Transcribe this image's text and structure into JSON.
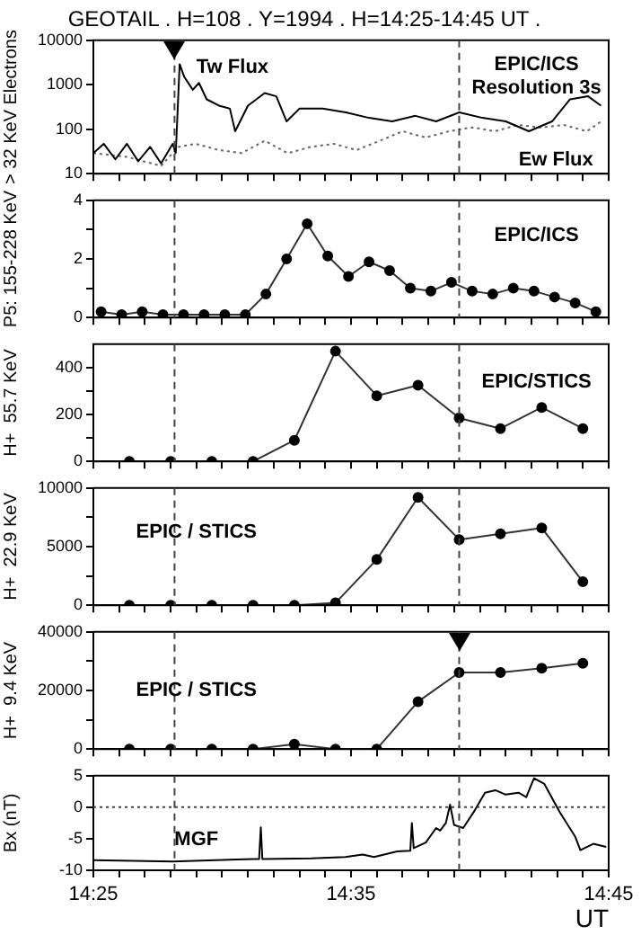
{
  "chart_data": [
    {
      "type": "line",
      "title": "GEOTAIL . H=108 . Y=1994 . H=14:25-14:45 UT .",
      "ylabel": "> 32 KeV Electrons",
      "log": "y",
      "marker": "none",
      "tick_labels": "y",
      "xlim": [
        14.4167,
        14.75
      ],
      "xticks": [
        {
          "value": 14.4167,
          "label": null
        },
        {
          "value": 14.4333,
          "label": null
        },
        {
          "value": 14.45,
          "label": null
        },
        {
          "value": 14.4667,
          "label": null
        },
        {
          "value": 14.4833,
          "label": null
        },
        {
          "value": 14.5,
          "label": null
        },
        {
          "value": 14.5167,
          "label": null
        },
        {
          "value": 14.5333,
          "label": null
        },
        {
          "value": 14.55,
          "label": null
        },
        {
          "value": 14.5667,
          "label": null
        },
        {
          "value": 14.5833,
          "label": null
        },
        {
          "value": 14.6,
          "label": null
        },
        {
          "value": 14.6167,
          "label": null
        },
        {
          "value": 14.6333,
          "label": null
        },
        {
          "value": 14.65,
          "label": null
        },
        {
          "value": 14.6667,
          "label": null
        },
        {
          "value": 14.6833,
          "label": null
        },
        {
          "value": 14.7,
          "label": null
        },
        {
          "value": 14.7167,
          "label": null
        },
        {
          "value": 14.7333,
          "label": null
        },
        {
          "value": 14.75,
          "label": null
        }
      ],
      "ylim": [
        10,
        10000
      ],
      "yticks": [
        10,
        100,
        1000,
        10000
      ],
      "series": [
        {
          "name": "Tw Flux",
          "color": "#000000",
          "line_style": "solid",
          "x": [
            14.4167,
            14.4234,
            14.4309,
            14.4384,
            14.4457,
            14.4534,
            14.4605,
            14.468,
            14.47,
            14.4725,
            14.4755,
            14.481,
            14.485,
            14.49,
            14.4979,
            14.505,
            14.5084,
            14.5167,
            14.5275,
            14.535,
            14.5417,
            14.55,
            14.565,
            14.58,
            14.595,
            14.61,
            14.625,
            14.6384,
            14.6534,
            14.6684,
            14.6834,
            14.6984,
            14.7134,
            14.725,
            14.7367,
            14.745
          ],
          "values": [
            29,
            47,
            21,
            47,
            19,
            40,
            17,
            47,
            29,
            2900,
            1500,
            770,
            1100,
            470,
            340,
            290,
            90,
            340,
            650,
            550,
            150,
            290,
            290,
            240,
            180,
            150,
            200,
            150,
            240,
            180,
            150,
            90,
            150,
            470,
            550,
            340
          ]
        },
        {
          "name": "Ew Flux",
          "color": "#666666",
          "line_style": "dotted",
          "x": [
            14.4167,
            14.4382,
            14.4605,
            14.4717,
            14.4829,
            14.4979,
            14.5127,
            14.5275,
            14.5424,
            14.5574,
            14.5722,
            14.587,
            14.602,
            14.6167,
            14.6317,
            14.6467,
            14.6617,
            14.6764,
            14.6912,
            14.7062,
            14.721,
            14.7359,
            14.7452
          ],
          "values": [
            29,
            24,
            15,
            40,
            47,
            34,
            29,
            55,
            29,
            40,
            47,
            34,
            55,
            90,
            65,
            90,
            110,
            90,
            125,
            110,
            125,
            90,
            150
          ]
        }
      ],
      "ref_lines": [
        {
          "axis": "x",
          "value": 14.4692,
          "line_style": "dashed"
        },
        {
          "axis": "x",
          "value": 14.6533,
          "line_style": "dashed"
        }
      ],
      "annotations": [
        "EPIC/ICS",
        "Resolution 3s"
      ]
    },
    {
      "type": "line",
      "ylabel": "P5: 155-228 KeV",
      "marker": "circle",
      "line_style": "solid",
      "color": "#333333",
      "tick_labels": "y",
      "xlim": [
        14.4167,
        14.75
      ],
      "xticks": [
        {
          "value": 14.4167,
          "label": null
        },
        {
          "value": 14.4333,
          "label": null
        },
        {
          "value": 14.45,
          "label": null
        },
        {
          "value": 14.4667,
          "label": null
        },
        {
          "value": 14.4833,
          "label": null
        },
        {
          "value": 14.5,
          "label": null
        },
        {
          "value": 14.5167,
          "label": null
        },
        {
          "value": 14.5333,
          "label": null
        },
        {
          "value": 14.55,
          "label": null
        },
        {
          "value": 14.5667,
          "label": null
        },
        {
          "value": 14.5833,
          "label": null
        },
        {
          "value": 14.6,
          "label": null
        },
        {
          "value": 14.6167,
          "label": null
        },
        {
          "value": 14.6333,
          "label": null
        },
        {
          "value": 14.65,
          "label": null
        },
        {
          "value": 14.6667,
          "label": null
        },
        {
          "value": 14.6833,
          "label": null
        },
        {
          "value": 14.7,
          "label": null
        },
        {
          "value": 14.7167,
          "label": null
        },
        {
          "value": 14.7333,
          "label": null
        },
        {
          "value": 14.75,
          "label": null
        }
      ],
      "ylim": [
        0,
        4
      ],
      "yticks": [
        0,
        {
          "value": 1,
          "label": null
        },
        2,
        {
          "value": 3,
          "label": null
        },
        4
      ],
      "x": [
        14.4217,
        14.435,
        14.4483,
        14.4617,
        14.475,
        14.4883,
        14.5017,
        14.515,
        14.5283,
        14.5417,
        14.555,
        14.5683,
        14.5817,
        14.595,
        14.6083,
        14.6217,
        14.635,
        14.6483,
        14.6617,
        14.675,
        14.6883,
        14.7017,
        14.715,
        14.7283,
        14.7417
      ],
      "values": [
        0.2,
        0.1,
        0.2,
        0.1,
        0.1,
        0.1,
        0.1,
        0.1,
        0.8,
        2.0,
        3.2,
        2.1,
        1.4,
        1.9,
        1.6,
        1.0,
        0.9,
        1.2,
        0.9,
        0.8,
        1.0,
        0.9,
        0.7,
        0.5,
        0.2
      ],
      "ref_lines": [
        {
          "axis": "x",
          "value": 14.4692,
          "line_style": "dashed"
        },
        {
          "axis": "x",
          "value": 14.6533,
          "line_style": "dashed"
        }
      ],
      "annotations": [
        "EPIC/ICS"
      ]
    },
    {
      "type": "line",
      "ylabel": "H+  55.7 KeV",
      "marker": "circle",
      "line_style": "solid",
      "color": "#333333",
      "tick_labels": "y",
      "xlim": [
        14.4167,
        14.75
      ],
      "xticks": [
        {
          "value": 14.4167,
          "label": null
        },
        {
          "value": 14.4333,
          "label": null
        },
        {
          "value": 14.45,
          "label": null
        },
        {
          "value": 14.4667,
          "label": null
        },
        {
          "value": 14.4833,
          "label": null
        },
        {
          "value": 14.5,
          "label": null
        },
        {
          "value": 14.5167,
          "label": null
        },
        {
          "value": 14.5333,
          "label": null
        },
        {
          "value": 14.55,
          "label": null
        },
        {
          "value": 14.5667,
          "label": null
        },
        {
          "value": 14.5833,
          "label": null
        },
        {
          "value": 14.6,
          "label": null
        },
        {
          "value": 14.6167,
          "label": null
        },
        {
          "value": 14.6333,
          "label": null
        },
        {
          "value": 14.65,
          "label": null
        },
        {
          "value": 14.6667,
          "label": null
        },
        {
          "value": 14.6833,
          "label": null
        },
        {
          "value": 14.7,
          "label": null
        },
        {
          "value": 14.7167,
          "label": null
        },
        {
          "value": 14.7333,
          "label": null
        },
        {
          "value": 14.75,
          "label": null
        }
      ],
      "ylim": [
        0,
        500
      ],
      "yticks": [
        0,
        {
          "value": 100,
          "label": null
        },
        200,
        {
          "value": 300,
          "label": null
        },
        400
      ],
      "x": [
        14.44,
        14.4667,
        14.4933,
        14.52,
        14.5467,
        14.5733,
        14.6,
        14.6267,
        14.6533,
        14.68,
        14.7067,
        14.7333
      ],
      "values": [
        0,
        0,
        0,
        0,
        90,
        470,
        280,
        325,
        185,
        140,
        230,
        140
      ],
      "ref_lines": [
        {
          "axis": "x",
          "value": 14.4692,
          "line_style": "dashed"
        },
        {
          "axis": "x",
          "value": 14.6533,
          "line_style": "dashed"
        }
      ],
      "annotations": [
        "EPIC/STICS"
      ]
    },
    {
      "type": "line",
      "ylabel": "H+  22.9 KeV",
      "marker": "circle",
      "line_style": "solid",
      "color": "#333333",
      "tick_labels": "y",
      "xlim": [
        14.4167,
        14.75
      ],
      "xticks": [
        {
          "value": 14.4167,
          "label": null
        },
        {
          "value": 14.4333,
          "label": null
        },
        {
          "value": 14.45,
          "label": null
        },
        {
          "value": 14.4667,
          "label": null
        },
        {
          "value": 14.4833,
          "label": null
        },
        {
          "value": 14.5,
          "label": null
        },
        {
          "value": 14.5167,
          "label": null
        },
        {
          "value": 14.5333,
          "label": null
        },
        {
          "value": 14.55,
          "label": null
        },
        {
          "value": 14.5667,
          "label": null
        },
        {
          "value": 14.5833,
          "label": null
        },
        {
          "value": 14.6,
          "label": null
        },
        {
          "value": 14.6167,
          "label": null
        },
        {
          "value": 14.6333,
          "label": null
        },
        {
          "value": 14.65,
          "label": null
        },
        {
          "value": 14.6667,
          "label": null
        },
        {
          "value": 14.6833,
          "label": null
        },
        {
          "value": 14.7,
          "label": null
        },
        {
          "value": 14.7167,
          "label": null
        },
        {
          "value": 14.7333,
          "label": null
        },
        {
          "value": 14.75,
          "label": null
        }
      ],
      "ylim": [
        0,
        10000
      ],
      "yticks": [
        0,
        {
          "value": 2500,
          "label": null
        },
        5000,
        {
          "value": 7500,
          "label": null
        },
        10000
      ],
      "x": [
        14.44,
        14.4667,
        14.4933,
        14.52,
        14.5467,
        14.5733,
        14.6,
        14.6267,
        14.6533,
        14.68,
        14.7067,
        14.7333
      ],
      "values": [
        0,
        0,
        0,
        0,
        0,
        200,
        3900,
        9200,
        5600,
        6100,
        6600,
        2000
      ],
      "ref_lines": [
        {
          "axis": "x",
          "value": 14.4692,
          "line_style": "dashed"
        },
        {
          "axis": "x",
          "value": 14.6533,
          "line_style": "dashed"
        }
      ],
      "annotations": [
        "EPIC / STICS"
      ]
    },
    {
      "type": "line",
      "ylabel": "H+  9.4 KeV",
      "marker": "circle",
      "line_style": "solid",
      "color": "#333333",
      "tick_labels": "y",
      "xlim": [
        14.4167,
        14.75
      ],
      "xticks": [
        {
          "value": 14.4167,
          "label": null
        },
        {
          "value": 14.4333,
          "label": null
        },
        {
          "value": 14.45,
          "label": null
        },
        {
          "value": 14.4667,
          "label": null
        },
        {
          "value": 14.4833,
          "label": null
        },
        {
          "value": 14.5,
          "label": null
        },
        {
          "value": 14.5167,
          "label": null
        },
        {
          "value": 14.5333,
          "label": null
        },
        {
          "value": 14.55,
          "label": null
        },
        {
          "value": 14.5667,
          "label": null
        },
        {
          "value": 14.5833,
          "label": null
        },
        {
          "value": 14.6,
          "label": null
        },
        {
          "value": 14.6167,
          "label": null
        },
        {
          "value": 14.6333,
          "label": null
        },
        {
          "value": 14.65,
          "label": null
        },
        {
          "value": 14.6667,
          "label": null
        },
        {
          "value": 14.6833,
          "label": null
        },
        {
          "value": 14.7,
          "label": null
        },
        {
          "value": 14.7167,
          "label": null
        },
        {
          "value": 14.7333,
          "label": null
        },
        {
          "value": 14.75,
          "label": null
        }
      ],
      "ylim": [
        0,
        40000
      ],
      "yticks": [
        0,
        {
          "value": 10000,
          "label": null
        },
        20000,
        {
          "value": 30000,
          "label": null
        },
        40000
      ],
      "x": [
        14.44,
        14.4667,
        14.4933,
        14.52,
        14.5467,
        14.5733,
        14.6,
        14.6267,
        14.6533,
        14.68,
        14.7067,
        14.7333
      ],
      "values": [
        0,
        0,
        0,
        0,
        1700,
        0,
        0,
        16200,
        26100,
        26100,
        27600,
        29300
      ],
      "ref_lines": [
        {
          "axis": "x",
          "value": 14.4692,
          "line_style": "dashed"
        },
        {
          "axis": "x",
          "value": 14.6533,
          "line_style": "dashed"
        }
      ],
      "annotations": [
        "EPIC / STICS"
      ]
    },
    {
      "type": "line",
      "ylabel": "Bx (nT)",
      "xlabel": "UT",
      "marker": "none",
      "line_style": "solid",
      "color": "#000000",
      "xlim": [
        14.4167,
        14.75
      ],
      "xticks": [
        {
          "value": 14.4167,
          "label": "14:25"
        },
        {
          "value": 14.4333,
          "label": null
        },
        {
          "value": 14.45,
          "label": null
        },
        {
          "value": 14.4667,
          "label": null
        },
        {
          "value": 14.4833,
          "label": null
        },
        {
          "value": 14.5,
          "label": null
        },
        {
          "value": 14.5167,
          "label": null
        },
        {
          "value": 14.5333,
          "label": null
        },
        {
          "value": 14.55,
          "label": null
        },
        {
          "value": 14.5667,
          "label": null
        },
        {
          "value": 14.5833,
          "label": "14:35"
        },
        {
          "value": 14.6,
          "label": null
        },
        {
          "value": 14.6167,
          "label": null
        },
        {
          "value": 14.6333,
          "label": null
        },
        {
          "value": 14.65,
          "label": null
        },
        {
          "value": 14.6667,
          "label": null
        },
        {
          "value": 14.6833,
          "label": null
        },
        {
          "value": 14.7,
          "label": null
        },
        {
          "value": 14.7167,
          "label": null
        },
        {
          "value": 14.7333,
          "label": null
        },
        {
          "value": 14.75,
          "label": "14:45"
        }
      ],
      "ylim": [
        -10,
        5
      ],
      "yticks": [
        -10,
        -5,
        0,
        5
      ],
      "x": [
        14.4167,
        14.468,
        14.52,
        14.5239,
        14.525,
        14.526,
        14.5574,
        14.5797,
        14.5909,
        14.5982,
        14.6132,
        14.6217,
        14.6227,
        14.6239,
        14.6317,
        14.6384,
        14.641,
        14.6447,
        14.6474,
        14.65,
        14.6559,
        14.6634,
        14.67,
        14.6767,
        14.6834,
        14.6917,
        14.6967,
        14.7017,
        14.7084,
        14.7184,
        14.7284,
        14.7317,
        14.74,
        14.7484
      ],
      "values": [
        -8.4,
        -8.6,
        -8.2,
        -8.2,
        -3.2,
        -8.2,
        -8.1,
        -7.9,
        -7.5,
        -7.9,
        -7.0,
        -6.9,
        -2.5,
        -6.5,
        -5.6,
        -3.3,
        -3.7,
        -2.5,
        0.4,
        -2.8,
        -3.3,
        -0.5,
        2.3,
        2.7,
        2.0,
        2.3,
        1.6,
        4.6,
        3.7,
        -0.8,
        -4.7,
        -6.8,
        -5.8,
        -6.3
      ],
      "ref_lines": [
        {
          "axis": "x",
          "value": 14.4692,
          "line_style": "dashed"
        },
        {
          "axis": "x",
          "value": 14.6533,
          "line_style": "dashed"
        },
        {
          "axis": "y",
          "value": 0,
          "line_style": "dotted"
        }
      ],
      "annotations": [
        "MGF"
      ]
    }
  ]
}
